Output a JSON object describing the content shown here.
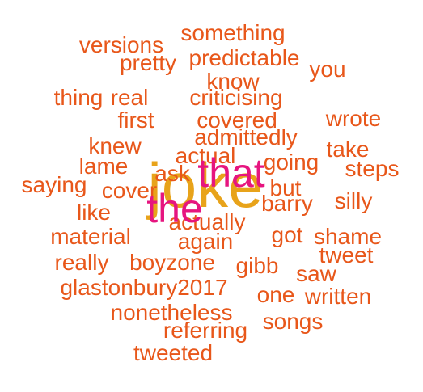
{
  "colors": {
    "orange": "#e8571a",
    "gold": "#e8a31a",
    "pink": "#e6157f",
    "background": "#ffffff"
  },
  "words": {
    "joke": "joke",
    "that": "that",
    "the": "the",
    "something": "something",
    "versions": "versions",
    "pretty": "pretty",
    "predictable": "predictable",
    "you": "you",
    "know": "know",
    "thing": "thing",
    "real": "real",
    "criticising": "criticising",
    "first": "first",
    "covered": "covered",
    "wrote": "wrote",
    "admittedly": "admittedly",
    "knew": "knew",
    "take": "take",
    "actual": "actual",
    "lame": "lame",
    "ask": "ask",
    "going": "going",
    "steps": "steps",
    "saying": "saying",
    "cover": "cover",
    "but": "but",
    "barry": "barry",
    "silly": "silly",
    "like": "like",
    "actually": "actually",
    "material": "material",
    "again": "again",
    "got": "got",
    "shame": "shame",
    "tweet": "tweet",
    "really": "really",
    "boyzone": "boyzone",
    "gibb": "gibb",
    "saw": "saw",
    "glastonbury2017": "glastonbury2017",
    "one": "one",
    "written": "written",
    "nonetheless": "nonetheless",
    "songs": "songs",
    "referring": "referring",
    "tweeted": "tweeted"
  }
}
